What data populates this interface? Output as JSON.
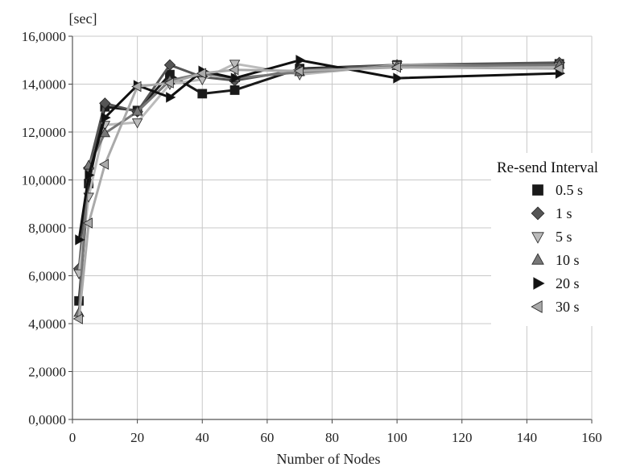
{
  "chart_data": {
    "type": "line",
    "xlabel": "Number of Nodes",
    "ylabel": "[sec]",
    "xlim": [
      0,
      160
    ],
    "ylim": [
      0,
      16
    ],
    "x_ticks": [
      "0",
      "20",
      "40",
      "60",
      "80",
      "100",
      "120",
      "140",
      "160"
    ],
    "y_ticks": [
      "0,0000",
      "2,0000",
      "4,0000",
      "6,0000",
      "8,0000",
      "10,0000",
      "12,0000",
      "14,0000",
      "16,0000"
    ],
    "grid": true,
    "legend_title": "Re-send Interval",
    "legend_position": "right",
    "series": [
      {
        "name": "0.5 s",
        "marker": "square",
        "color": "#1a1a1a",
        "x": [
          2,
          5,
          10,
          20,
          30,
          40,
          50,
          70,
          100,
          150
        ],
        "y": [
          4.95,
          9.85,
          13.05,
          12.9,
          14.4,
          13.6,
          13.75,
          14.65,
          14.8,
          14.85
        ]
      },
      {
        "name": "1 s",
        "marker": "diamond",
        "color": "#555555",
        "x": [
          2,
          5,
          10,
          20,
          30,
          40,
          50,
          70,
          100,
          150
        ],
        "y": [
          6.3,
          10.5,
          13.2,
          12.85,
          14.8,
          14.3,
          14.15,
          14.6,
          14.8,
          14.9
        ]
      },
      {
        "name": "5 s",
        "marker": "triangle-down",
        "color": "#bbbbbb",
        "x": [
          2,
          5,
          10,
          20,
          30,
          40,
          50,
          70,
          100,
          150
        ],
        "y": [
          6.1,
          9.3,
          12.3,
          12.4,
          14.0,
          14.2,
          14.85,
          14.4,
          14.8,
          14.75
        ]
      },
      {
        "name": "10 s",
        "marker": "triangle-up",
        "color": "#777777",
        "x": [
          2,
          5,
          10,
          20,
          30,
          40,
          50,
          70,
          100,
          150
        ],
        "y": [
          4.45,
          10.6,
          11.95,
          12.85,
          14.15,
          14.45,
          14.25,
          14.5,
          14.75,
          14.8
        ]
      },
      {
        "name": "20 s",
        "marker": "triangle-right",
        "color": "#111111",
        "x": [
          2,
          5,
          10,
          20,
          30,
          40,
          50,
          70,
          100,
          150
        ],
        "y": [
          7.5,
          10.2,
          12.6,
          13.95,
          13.45,
          14.55,
          14.25,
          15.0,
          14.25,
          14.45
        ]
      },
      {
        "name": "30 s",
        "marker": "triangle-left",
        "color": "#aaaaaa",
        "x": [
          2,
          5,
          10,
          20,
          30,
          40,
          50,
          70,
          100,
          150
        ],
        "y": [
          4.2,
          8.2,
          10.65,
          13.9,
          14.05,
          14.45,
          14.6,
          14.55,
          14.7,
          14.65
        ]
      }
    ]
  }
}
